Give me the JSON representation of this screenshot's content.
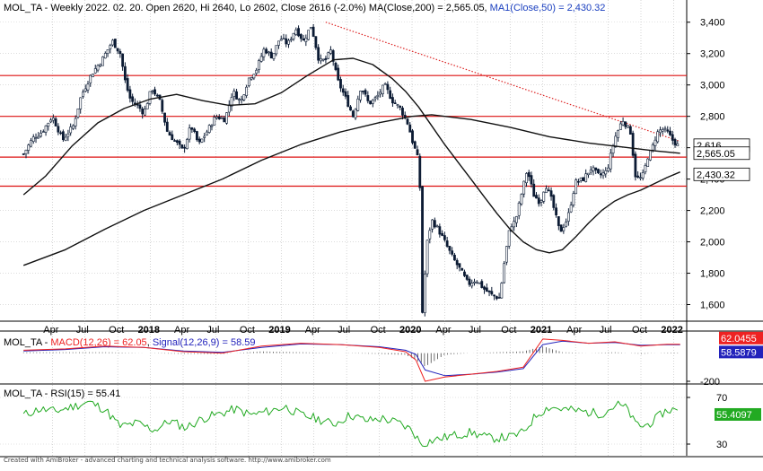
{
  "chart_data": [
    {
      "type": "line",
      "subtype": "candlestick",
      "instrument": "MOL_TA",
      "title_parts": {
        "symbol": "MOL_TA",
        "header": "MOL_TA - Weekly 2022. 02. 20. Open 2620, Hi 2640, Lo 2602, Close 2616 (-2.0%)",
        "ma200_label": "MA(Close,200) = 2,565.05",
        "ma50_label": "MA1(Close,50) = 2,430.32"
      },
      "ylim": [
        1500,
        3450
      ],
      "y_ticks": [
        1600,
        1800,
        2000,
        2200,
        2400,
        2600,
        2800,
        3000,
        3200,
        3400
      ],
      "y_tick_labels": [
        "1,600",
        "1,800",
        "2,000",
        "2,200",
        "2,400",
        "",
        "2,800",
        "3,000",
        "3,200",
        "3,400"
      ],
      "x_tick_labels": [
        {
          "t": 0.4,
          "label": "Apr",
          "bold": false
        },
        {
          "t": 0.65,
          "label": "Jul",
          "bold": false
        },
        {
          "t": 0.9,
          "label": "Oct",
          "bold": false
        },
        {
          "t": 1.15,
          "label": "2018",
          "bold": true
        },
        {
          "t": 1.4,
          "label": "Apr",
          "bold": false
        },
        {
          "t": 1.65,
          "label": "Jul",
          "bold": false
        },
        {
          "t": 1.9,
          "label": "Oct",
          "bold": false
        },
        {
          "t": 2.15,
          "label": "2019",
          "bold": true
        },
        {
          "t": 2.4,
          "label": "Apr",
          "bold": false
        },
        {
          "t": 2.65,
          "label": "Jul",
          "bold": false
        },
        {
          "t": 2.9,
          "label": "Oct",
          "bold": false
        },
        {
          "t": 3.15,
          "label": "2020",
          "bold": true
        },
        {
          "t": 3.4,
          "label": "Apr",
          "bold": false
        },
        {
          "t": 3.65,
          "label": "Jul",
          "bold": false
        },
        {
          "t": 3.9,
          "label": "Oct",
          "bold": false
        },
        {
          "t": 4.15,
          "label": "2021",
          "bold": true
        },
        {
          "t": 4.4,
          "label": "Apr",
          "bold": false
        },
        {
          "t": 4.65,
          "label": "Jul",
          "bold": false
        },
        {
          "t": 4.9,
          "label": "Oct",
          "bold": false
        },
        {
          "t": 5.15,
          "label": "2022",
          "bold": true
        }
      ],
      "horizontal_levels": [
        3060,
        2800,
        2540,
        2355
      ],
      "trendline": {
        "x": [
          2.49,
          5.2
        ],
        "y": [
          3400,
          2640
        ],
        "color": "#dd2222",
        "style": "dotted"
      },
      "close_path": {
        "x": [
          0.18,
          0.25,
          0.32,
          0.4,
          0.48,
          0.56,
          0.62,
          0.7,
          0.78,
          0.86,
          0.92,
          0.96,
          1.0,
          1.05,
          1.1,
          1.16,
          1.22,
          1.28,
          1.34,
          1.4,
          1.46,
          1.52,
          1.58,
          1.65,
          1.72,
          1.78,
          1.84,
          1.9,
          1.96,
          2.02,
          2.08,
          2.14,
          2.2,
          2.26,
          2.32,
          2.38,
          2.44,
          2.49,
          2.53,
          2.58,
          2.64,
          2.7,
          2.76,
          2.82,
          2.88,
          2.94,
          3.0,
          3.06,
          3.12,
          3.16,
          3.19,
          3.21,
          3.23,
          3.26,
          3.3,
          3.35,
          3.4,
          3.46,
          3.52,
          3.58,
          3.64,
          3.7,
          3.76,
          3.82,
          3.86,
          3.9,
          3.94,
          3.98,
          4.03,
          4.08,
          4.13,
          4.17,
          4.22,
          4.28,
          4.34,
          4.4,
          4.46,
          4.52,
          4.58,
          4.64,
          4.7,
          4.76,
          4.82,
          4.86,
          4.89,
          4.92,
          4.95,
          4.98,
          5.02,
          5.06,
          5.1,
          5.14,
          5.18
        ],
        "y": [
          2560,
          2660,
          2700,
          2800,
          2650,
          2740,
          2930,
          3070,
          3160,
          3280,
          3200,
          3010,
          2900,
          2870,
          2820,
          2980,
          2900,
          2700,
          2640,
          2580,
          2740,
          2620,
          2700,
          2800,
          2780,
          2960,
          2890,
          3040,
          3100,
          3230,
          3180,
          3300,
          3260,
          3360,
          3280,
          3380,
          3150,
          3160,
          3220,
          3030,
          2920,
          2800,
          2990,
          2880,
          2920,
          3000,
          2900,
          2850,
          2750,
          2620,
          2550,
          2360,
          1520,
          1970,
          2140,
          2080,
          2000,
          1900,
          1820,
          1730,
          1760,
          1700,
          1660,
          1640,
          1900,
          2100,
          2130,
          2280,
          2460,
          2300,
          2250,
          2370,
          2260,
          2060,
          2150,
          2380,
          2400,
          2470,
          2420,
          2450,
          2660,
          2780,
          2700,
          2410,
          2400,
          2430,
          2540,
          2580,
          2690,
          2720,
          2700,
          2650,
          2616
        ]
      },
      "ma50": {
        "x": [
          0.18,
          0.35,
          0.55,
          0.75,
          0.95,
          1.15,
          1.35,
          1.55,
          1.75,
          1.95,
          2.15,
          2.35,
          2.55,
          2.7,
          2.85,
          3.0,
          3.1,
          3.2,
          3.3,
          3.4,
          3.5,
          3.6,
          3.7,
          3.8,
          3.9,
          4.0,
          4.1,
          4.2,
          4.3,
          4.4,
          4.5,
          4.6,
          4.7,
          4.8,
          4.9,
          5.0,
          5.1,
          5.2
        ],
        "y": [
          2300,
          2420,
          2610,
          2760,
          2850,
          2910,
          2940,
          2900,
          2870,
          2880,
          2950,
          3060,
          3160,
          3170,
          3130,
          3040,
          2960,
          2860,
          2740,
          2620,
          2510,
          2400,
          2290,
          2180,
          2080,
          2000,
          1950,
          1930,
          1950,
          2030,
          2120,
          2200,
          2260,
          2300,
          2330,
          2370,
          2410,
          2445
        ]
      },
      "ma200": {
        "x": [
          0.18,
          0.5,
          0.8,
          1.1,
          1.4,
          1.7,
          2.0,
          2.3,
          2.6,
          2.9,
          3.15,
          3.3,
          3.6,
          3.9,
          4.2,
          4.5,
          4.8,
          5.0,
          5.2
        ],
        "y": [
          1850,
          1950,
          2080,
          2200,
          2300,
          2400,
          2520,
          2620,
          2700,
          2760,
          2800,
          2810,
          2780,
          2730,
          2670,
          2630,
          2600,
          2580,
          2565
        ]
      },
      "price_labels": [
        {
          "value": 2616,
          "label": "2,616",
          "color": "#000000"
        },
        {
          "value": 2565.05,
          "label": "2,565.05",
          "color": "#000000"
        },
        {
          "value": 2430.32,
          "label": "2,430.32",
          "color": "#000000"
        }
      ]
    },
    {
      "type": "line",
      "name": "MACD panel",
      "header_parts": {
        "prefix": "MOL_TA - ",
        "macd": "MACD(12,26) = 62.05",
        "sep": ", ",
        "signal": "Signal(12,26,9) = 58.59"
      },
      "ylim": [
        -200,
        150
      ],
      "y_ticks": [
        -200
      ],
      "y_tick_labels": [
        "-200"
      ],
      "series": [
        {
          "name": "MACD(12,26)",
          "color": "#ee2222",
          "x": [
            0.18,
            0.5,
            0.8,
            1.1,
            1.4,
            1.7,
            2.0,
            2.3,
            2.6,
            2.9,
            3.1,
            3.18,
            3.25,
            3.4,
            3.6,
            3.8,
            4.0,
            4.15,
            4.3,
            4.5,
            4.7,
            4.9,
            5.1,
            5.2
          ],
          "y": [
            20,
            30,
            50,
            40,
            10,
            0,
            50,
            70,
            60,
            40,
            10,
            -50,
            -200,
            -170,
            -150,
            -130,
            -100,
            100,
            90,
            70,
            80,
            50,
            62,
            62
          ]
        },
        {
          "name": "Signal(12,26,9)",
          "color": "#2222bb",
          "x": [
            0.18,
            0.5,
            0.8,
            1.1,
            1.4,
            1.7,
            2.0,
            2.3,
            2.6,
            2.9,
            3.1,
            3.18,
            3.25,
            3.4,
            3.6,
            3.8,
            4.0,
            4.15,
            4.3,
            4.5,
            4.7,
            4.9,
            5.1,
            5.2
          ],
          "y": [
            15,
            25,
            45,
            40,
            15,
            5,
            40,
            65,
            60,
            45,
            20,
            -10,
            -120,
            -160,
            -150,
            -135,
            -110,
            60,
            85,
            70,
            75,
            55,
            59,
            59
          ]
        }
      ],
      "value_labels": [
        {
          "value": 62.05,
          "label": "62.0455",
          "bg": "#ee2222"
        },
        {
          "value": 58.59,
          "label": "58.5879",
          "bg": "#2222bb"
        }
      ]
    },
    {
      "type": "line",
      "name": "RSI panel",
      "header_parts": {
        "prefix": "MOL_TA - ",
        "rsi": "RSI(15) = 55.41"
      },
      "ylim": [
        20,
        80
      ],
      "y_ticks": [
        30,
        70
      ],
      "y_tick_labels": [
        "30",
        "70"
      ],
      "series": [
        {
          "name": "RSI(15)",
          "color": "#22aa22",
          "x": [
            0.18,
            0.3,
            0.42,
            0.55,
            0.68,
            0.8,
            0.92,
            1.05,
            1.18,
            1.3,
            1.42,
            1.55,
            1.68,
            1.8,
            1.92,
            2.05,
            2.18,
            2.3,
            2.42,
            2.55,
            2.68,
            2.8,
            2.92,
            3.05,
            3.15,
            3.22,
            3.3,
            3.45,
            3.6,
            3.75,
            3.9,
            4.0,
            4.1,
            4.2,
            4.3,
            4.45,
            4.6,
            4.72,
            4.8,
            4.85,
            4.92,
            5.0,
            5.08,
            5.15,
            5.2
          ],
          "y": [
            55,
            60,
            58,
            62,
            66,
            60,
            45,
            48,
            42,
            50,
            44,
            52,
            56,
            60,
            55,
            58,
            62,
            55,
            52,
            47,
            55,
            50,
            52,
            48,
            42,
            30,
            33,
            37,
            40,
            35,
            36,
            40,
            55,
            62,
            60,
            58,
            56,
            64,
            60,
            48,
            45,
            50,
            58,
            60,
            55
          ]
        }
      ],
      "value_labels": [
        {
          "value": 55.41,
          "label": "55.4097",
          "bg": "#22aa22"
        }
      ]
    }
  ],
  "footer": "Created with AmiBroker - advanced charting and technical analysis software. http://www.amibroker.com"
}
